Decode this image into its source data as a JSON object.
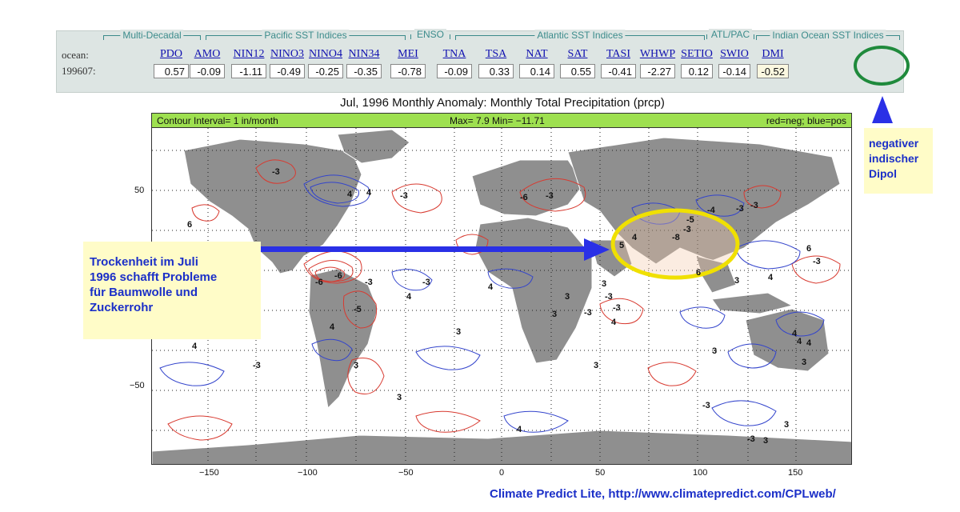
{
  "panel": {
    "groups": [
      "Multi-Decadal",
      "Pacific SST Indices",
      "ENSO",
      "Atlantic SST Indices",
      "ATL/PAC",
      "Indian Ocean SST Indices"
    ],
    "row_label_index": "ocean:",
    "row_label_date": "199607:",
    "indices": [
      {
        "name": "PDO",
        "value": "0.57"
      },
      {
        "name": "AMO",
        "value": "-0.09"
      },
      {
        "name": "NIN12",
        "value": "-1.11"
      },
      {
        "name": "NINO3",
        "value": "-0.49"
      },
      {
        "name": "NINO4",
        "value": "-0.25"
      },
      {
        "name": "NIN34",
        "value": "-0.35"
      },
      {
        "name": "MEI",
        "value": "-0.78"
      },
      {
        "name": "TNA",
        "value": "-0.09"
      },
      {
        "name": "TSA",
        "value": "0.33"
      },
      {
        "name": "NAT",
        "value": "0.14"
      },
      {
        "name": "SAT",
        "value": "0.55"
      },
      {
        "name": "TASI",
        "value": "-0.41"
      },
      {
        "name": "WHWP",
        "value": "-2.27"
      },
      {
        "name": "SETIO",
        "value": "0.12"
      },
      {
        "name": "SWIO",
        "value": "-0.14"
      },
      {
        "name": "DMI",
        "value": "-0.52"
      }
    ]
  },
  "map": {
    "title": "Jul, 1996   Monthly Anomaly: Monthly Total Precipitation (prcp)",
    "contour_interval": "Contour Interval= 1 in/month",
    "max_min": "Max= 7.9  Min= −11.71",
    "legend": "red=neg; blue=pos",
    "x_ticks": [
      "−150",
      "−100",
      "−50",
      "0",
      "50",
      "100",
      "150"
    ],
    "y_ticks": [
      "50",
      "−50"
    ],
    "contour_labels": [
      "-3",
      "-6",
      "-3",
      "4",
      "4",
      "-3",
      "6",
      "-5",
      "-3",
      "4",
      "4",
      "-6",
      "-3",
      "-6",
      "-8",
      "-3",
      "4",
      "5",
      "6",
      "6",
      "3",
      "4",
      "4",
      "4",
      "4",
      "3",
      "3",
      "3",
      "4",
      "3",
      "3",
      "-3",
      "3",
      "4",
      "4",
      "-3",
      "3",
      "3",
      "-3",
      "-3",
      "-3",
      "-4",
      "-5",
      "-3",
      "3",
      "-3",
      "4",
      "3",
      "-3",
      "-3",
      "3"
    ]
  },
  "notes": {
    "left": [
      "Trockenheit im Juli",
      "1996 schafft Probleme",
      "für Baumwolle und",
      "Zuckerrohr"
    ],
    "right": [
      "negativer",
      "indischer",
      "Dipol"
    ]
  },
  "footer": "Climate Predict Lite, http://www.climatepredict.com/CPLweb/",
  "colors": {
    "positive_contour": "#3344cc",
    "negative_contour": "#d83a30",
    "annotation_text": "#1b2fc8",
    "highlight_ellipse": "#f0e000",
    "dmi_circle": "#1f8a3c",
    "land": "#8f8f8f",
    "header_bar": "#9ee050"
  }
}
